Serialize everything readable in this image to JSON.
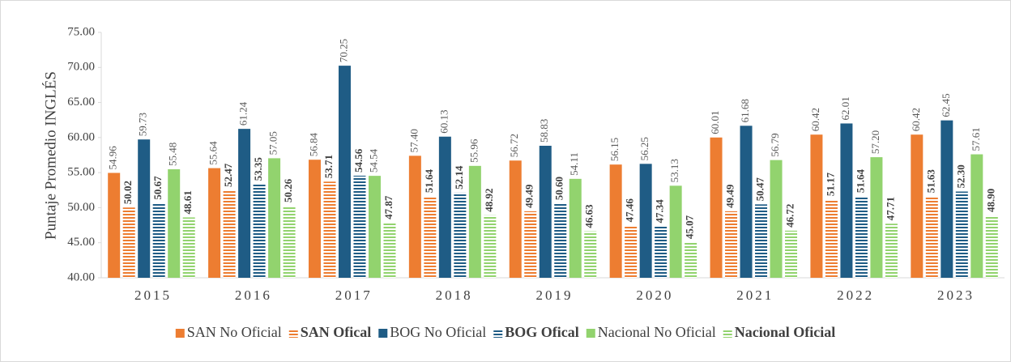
{
  "chart_data": {
    "type": "bar",
    "y_label": "Puntaje Promedio INGLÉS",
    "categories": [
      "2015",
      "2016",
      "2017",
      "2018",
      "2019",
      "2020",
      "2021",
      "2022",
      "2023"
    ],
    "ylim": [
      40,
      75
    ],
    "yticks": [
      {
        "value": 40,
        "label": "40.00"
      },
      {
        "value": 45,
        "label": "45.00"
      },
      {
        "value": 50,
        "label": "50.00"
      },
      {
        "value": 55,
        "label": "55.00"
      },
      {
        "value": 60,
        "label": "60.00"
      },
      {
        "value": 65,
        "label": "65.00"
      },
      {
        "value": 70,
        "label": "70.00"
      },
      {
        "value": 75,
        "label": "75.00"
      }
    ],
    "grid": false,
    "legend": "bottom",
    "series": [
      {
        "name": "SAN No Oficial",
        "color": "#ed7d31",
        "hatch": false,
        "bold": false,
        "values": [
          54.96,
          55.64,
          56.84,
          57.4,
          56.72,
          56.15,
          60.01,
          60.42,
          60.42
        ],
        "value_labels": [
          "54.96",
          "55.64",
          "56.84",
          "57.40",
          "56.72",
          "56.15",
          "60.01",
          "60.42",
          "60.42"
        ]
      },
      {
        "name": "SAN Ofical",
        "color": "#ed7d31",
        "hatch": true,
        "bold": true,
        "values": [
          50.02,
          52.47,
          53.71,
          51.64,
          49.49,
          47.46,
          49.49,
          51.17,
          51.63
        ],
        "value_labels": [
          "50.02",
          "52.47",
          "53.71",
          "51.64",
          "49.49",
          "47.46",
          "49.49",
          "51.17",
          "51.63"
        ]
      },
      {
        "name": "BOG No Oficial",
        "color": "#1f5c85",
        "hatch": false,
        "bold": false,
        "values": [
          59.73,
          61.24,
          70.25,
          60.13,
          58.83,
          56.25,
          61.68,
          62.01,
          62.45
        ],
        "value_labels": [
          "59.73",
          "61.24",
          "70.25",
          "60.13",
          "58.83",
          "56.25",
          "61.68",
          "62.01",
          "62.45"
        ]
      },
      {
        "name": "BOG Ofical",
        "color": "#1f5c85",
        "hatch": true,
        "bold": true,
        "values": [
          50.67,
          53.35,
          54.56,
          52.14,
          50.6,
          47.34,
          50.47,
          51.64,
          52.3
        ],
        "value_labels": [
          "50.67",
          "53.35",
          "54.56",
          "52.14",
          "50.60",
          "47.34",
          "50.47",
          "51.64",
          "52.30"
        ]
      },
      {
        "name": "Nacional No Oficial",
        "color": "#92d36e",
        "hatch": false,
        "bold": false,
        "values": [
          55.48,
          57.05,
          54.54,
          55.96,
          54.11,
          53.13,
          56.79,
          57.2,
          57.61
        ],
        "value_labels": [
          "55.48",
          "57.05",
          "54.54",
          "55.96",
          "54.11",
          "53.13",
          "56.79",
          "57.20",
          "57.61"
        ]
      },
      {
        "name": "Nacional Oficial",
        "color": "#92d36e",
        "hatch": true,
        "bold": true,
        "values": [
          48.61,
          50.26,
          47.87,
          48.92,
          46.63,
          45.07,
          46.72,
          47.71,
          48.9
        ],
        "value_labels": [
          "48.61",
          "50.26",
          "47.87",
          "48.92",
          "46.63",
          "45.07",
          "46.72",
          "47.71",
          "48.90"
        ]
      }
    ]
  }
}
